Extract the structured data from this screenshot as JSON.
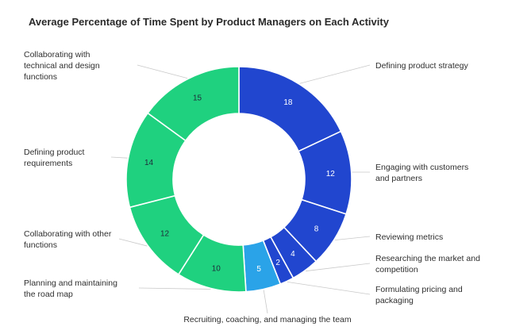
{
  "chart_data": {
    "type": "pie",
    "donut": true,
    "title": "Average Percentage of Time Spent by Product Managers on Each Activity",
    "slices": [
      {
        "label": "Defining product strategy",
        "value": 18,
        "color": "#2146cf"
      },
      {
        "label": "Engaging with customers and partners",
        "value": 12,
        "color": "#2146cf"
      },
      {
        "label": "Reviewing metrics",
        "value": 8,
        "color": "#2146cf"
      },
      {
        "label": "Researching the market and competition",
        "value": 4,
        "color": "#2146cf"
      },
      {
        "label": "Formulating pricing and packaging",
        "value": 2,
        "color": "#2146cf"
      },
      {
        "label": "Recruiting, coaching, and managing the team",
        "value": 5,
        "color": "#2aa3e8"
      },
      {
        "label": "Planning and maintaining the road map",
        "value": 10,
        "color": "#1fd17f"
      },
      {
        "label": "Collaborating with other functions",
        "value": 12,
        "color": "#1fd17f"
      },
      {
        "label": "Defining product requirements",
        "value": 14,
        "color": "#1fd17f"
      },
      {
        "label": "Collaborating with technical and design functions",
        "value": 15,
        "color": "#1fd17f"
      }
    ]
  }
}
